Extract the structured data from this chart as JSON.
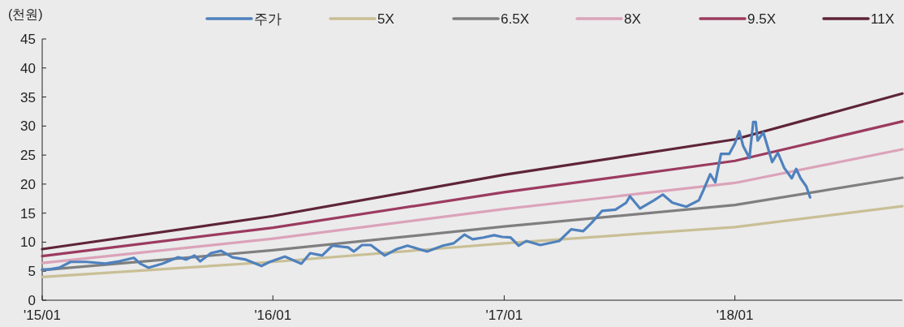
{
  "chart_data": {
    "type": "line",
    "ylabel": "(천원)",
    "xlim": [
      "2015-01-01",
      "2018-09-23"
    ],
    "xticks": [
      {
        "value": "2015-01-01",
        "label": "'15/01"
      },
      {
        "value": "2016-01-01",
        "label": "'16/01"
      },
      {
        "value": "2017-01-01",
        "label": "'17/01"
      },
      {
        "value": "2018-01-01",
        "label": "'18/01"
      }
    ],
    "ylim": [
      0,
      45
    ],
    "yticks": [
      0,
      5,
      10,
      15,
      20,
      25,
      30,
      35,
      40,
      45
    ],
    "grid": false,
    "legend": "top",
    "marker": "none",
    "line_style": "solid",
    "series": [
      {
        "name": "주가",
        "color": "#4f81bd",
        "x": [
          "2015-01-01",
          "2015-01-11",
          "2015-01-28",
          "2015-02-15",
          "2015-03-12",
          "2015-04-11",
          "2015-05-03",
          "2015-05-26",
          "2015-06-05",
          "2015-06-18",
          "2015-07-10",
          "2015-08-04",
          "2015-08-17",
          "2015-08-30",
          "2015-09-08",
          "2015-09-25",
          "2015-10-11",
          "2015-10-29",
          "2015-11-19",
          "2015-12-14",
          "2015-12-27",
          "2016-01-20",
          "2016-02-15",
          "2016-02-29",
          "2016-03-19",
          "2016-04-04",
          "2016-04-29",
          "2016-05-08",
          "2016-05-21",
          "2016-06-04",
          "2016-06-26",
          "2016-07-15",
          "2016-08-01",
          "2016-08-19",
          "2016-09-01",
          "2016-09-26",
          "2016-10-13",
          "2016-10-30",
          "2016-11-12",
          "2016-11-29",
          "2016-12-16",
          "2016-12-29",
          "2017-01-11",
          "2017-01-24",
          "2017-02-05",
          "2017-02-27",
          "2017-03-29",
          "2017-04-17",
          "2017-05-06",
          "2017-05-19",
          "2017-06-05",
          "2017-06-26",
          "2017-07-13",
          "2017-07-19",
          "2017-08-04",
          "2017-08-26",
          "2017-09-09",
          "2017-09-24",
          "2017-10-16",
          "2017-11-05",
          "2017-11-12",
          "2017-11-23",
          "2017-12-01",
          "2017-12-10",
          "2017-12-23",
          "2018-01-01",
          "2018-01-08",
          "2018-01-14",
          "2018-01-24",
          "2018-01-30",
          "2018-02-03",
          "2018-02-06",
          "2018-02-15",
          "2018-03-01",
          "2018-03-10",
          "2018-03-20",
          "2018-04-01",
          "2018-04-08",
          "2018-04-15",
          "2018-04-24",
          "2018-04-30"
        ],
        "values": [
          5.3,
          5.3,
          5.6,
          6.6,
          6.6,
          6.3,
          6.7,
          7.3,
          6.3,
          5.6,
          6.3,
          7.4,
          7.0,
          7.7,
          6.7,
          8.1,
          8.5,
          7.4,
          7.0,
          5.9,
          6.6,
          7.5,
          6.3,
          8.1,
          7.7,
          9.4,
          9.1,
          8.4,
          9.5,
          9.5,
          7.7,
          8.8,
          9.4,
          8.8,
          8.4,
          9.4,
          9.8,
          11.3,
          10.5,
          10.8,
          11.2,
          10.9,
          10.8,
          9.4,
          10.2,
          9.5,
          10.2,
          12.2,
          11.9,
          13.3,
          15.4,
          15.6,
          16.8,
          17.9,
          15.8,
          17.2,
          18.2,
          16.8,
          16.1,
          17.2,
          18.9,
          21.7,
          20.3,
          25.2,
          25.2,
          27.0,
          29.1,
          26.6,
          24.5,
          30.7,
          30.7,
          27.5,
          28.9,
          23.8,
          25.4,
          22.8,
          21.0,
          22.6,
          21.0,
          19.6,
          17.7
        ]
      },
      {
        "name": "5X",
        "color": "#c9bf96",
        "x": [
          "2015-01-01",
          "2016-01-01",
          "2017-01-01",
          "2018-01-01",
          "2018-09-23"
        ],
        "values": [
          4.0,
          6.6,
          9.8,
          12.6,
          16.2
        ]
      },
      {
        "name": "6.5X",
        "color": "#7f7f7f",
        "x": [
          "2015-01-01",
          "2016-01-01",
          "2017-01-01",
          "2018-01-01",
          "2018-09-23"
        ],
        "values": [
          5.2,
          8.6,
          12.7,
          16.4,
          21.1
        ]
      },
      {
        "name": "8X",
        "color": "#dba3b9",
        "x": [
          "2015-01-01",
          "2016-01-01",
          "2017-01-01",
          "2018-01-01",
          "2018-09-23"
        ],
        "values": [
          6.4,
          10.6,
          15.7,
          20.2,
          26.0
        ]
      },
      {
        "name": "9.5X",
        "color": "#9b3b5f",
        "x": [
          "2015-01-01",
          "2016-01-01",
          "2017-01-01",
          "2018-01-01",
          "2018-09-23"
        ],
        "values": [
          7.6,
          12.5,
          18.6,
          24.0,
          30.8
        ]
      },
      {
        "name": "11X",
        "color": "#5e2438",
        "x": [
          "2015-01-01",
          "2016-01-01",
          "2017-01-01",
          "2018-01-01",
          "2018-09-23"
        ],
        "values": [
          8.8,
          14.5,
          21.6,
          27.7,
          35.6
        ]
      }
    ]
  }
}
